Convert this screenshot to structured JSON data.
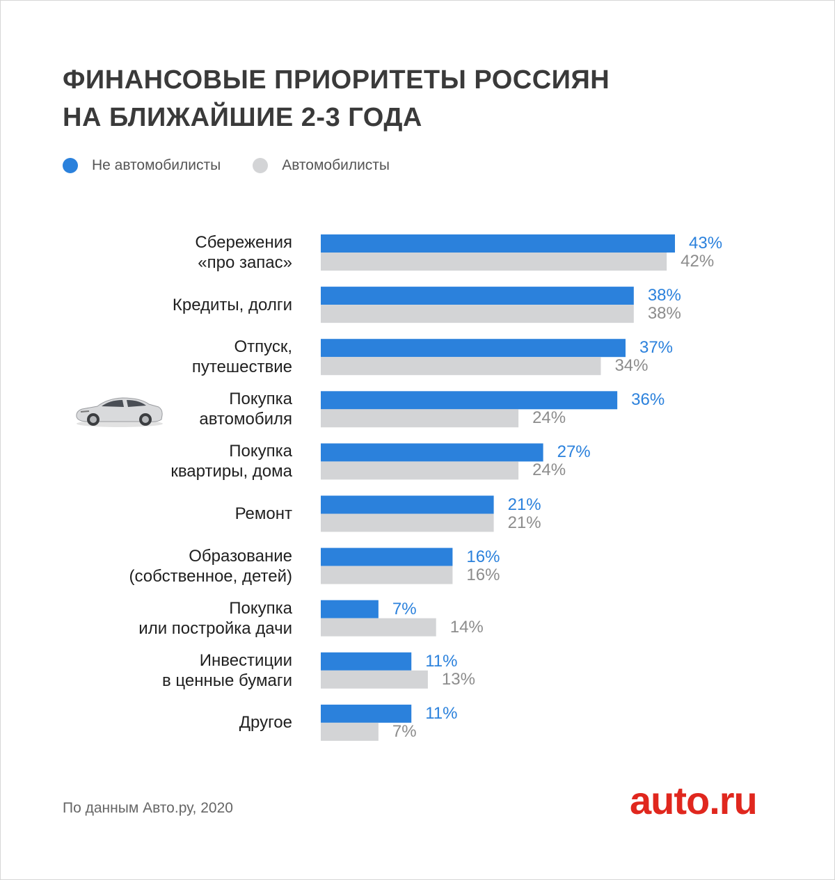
{
  "title_lines": [
    "ФИНАНСОВЫЕ ПРИОРИТЕТЫ РОССИЯН",
    "НА БЛИЖАЙШИЕ 2-3 ГОДА"
  ],
  "legend": [
    {
      "label": "Не автомобилисты",
      "color": "#2b81dc"
    },
    {
      "label": "Автомобилисты",
      "color": "#d3d4d6"
    }
  ],
  "footer": "По данным Авто.ру, 2020",
  "logo_text": "auto.ru",
  "car_icon": "car-illustration",
  "chart_data": {
    "type": "bar",
    "orientation": "horizontal",
    "title": "ФИНАНСОВЫЕ ПРИОРИТЕТЫ РОССИЯН НА БЛИЖАЙШИЕ 2-3 ГОДА",
    "unit": "%",
    "xlim": [
      0,
      43
    ],
    "grid": false,
    "legend_position": "top-left",
    "categories": [
      [
        "Сбережения",
        "«про запас»"
      ],
      [
        "Кредиты, долги"
      ],
      [
        "Отпуск,",
        "путешествие"
      ],
      [
        "Покупка",
        "автомобиля"
      ],
      [
        "Покупка",
        "квартиры, дома"
      ],
      [
        "Ремонт"
      ],
      [
        "Образование",
        "(собственное, детей)"
      ],
      [
        "Покупка",
        "или постройка дачи"
      ],
      [
        "Инвестиции",
        "в ценные бумаги"
      ],
      [
        "Другое"
      ]
    ],
    "series": [
      {
        "name": "Не автомобилисты",
        "color": "#2b81dc",
        "label_color": "#2b81dc",
        "values": [
          43,
          38,
          37,
          36,
          27,
          21,
          16,
          7,
          11,
          11
        ]
      },
      {
        "name": "Автомобилисты",
        "color": "#d3d4d6",
        "label_color": "#8c8c8c",
        "values": [
          42,
          38,
          34,
          24,
          24,
          21,
          16,
          14,
          13,
          7
        ]
      }
    ]
  }
}
